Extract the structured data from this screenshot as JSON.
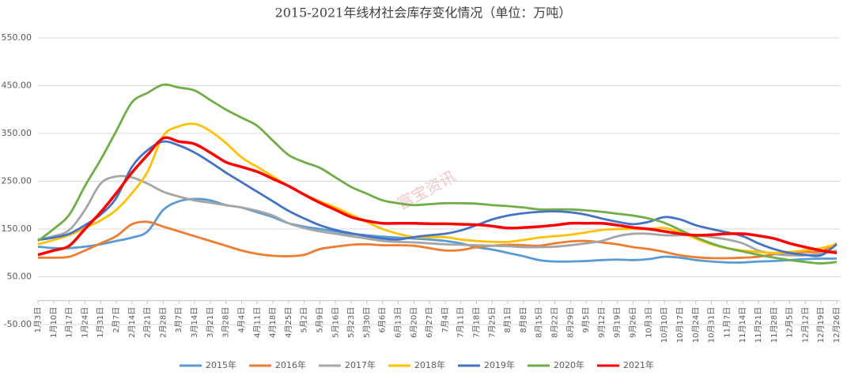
{
  "chart_data": {
    "type": "line",
    "title": "2015-2021年线材社会库存变化情况（单位：万吨）",
    "watermark": "富宝资讯",
    "categories": [
      "1月3日",
      "1月10日",
      "1月17日",
      "1月24日",
      "1月31日",
      "2月7日",
      "2月14日",
      "2月21日",
      "2月28日",
      "3月7日",
      "3月14日",
      "3月21日",
      "3月28日",
      "4月4日",
      "4月11日",
      "4月18日",
      "4月25日",
      "5月2日",
      "5月9日",
      "5月16日",
      "5月23日",
      "5月30日",
      "6月6日",
      "6月13日",
      "6月20日",
      "6月27日",
      "7月4日",
      "7月11日",
      "7月18日",
      "7月25日",
      "8月1日",
      "8月8日",
      "8月15日",
      "8月22日",
      "8月29日",
      "9月5日",
      "9月12日",
      "9月19日",
      "9月26日",
      "10月3日",
      "10月10日",
      "10月17日",
      "10月24日",
      "10月31日",
      "11月7日",
      "11月14日",
      "11月21日",
      "11月28日",
      "12月5日",
      "12月12日",
      "12月19日",
      "12月26日"
    ],
    "series": [
      {
        "name": "2015年",
        "color": "#5b9bd5",
        "values": [
          113,
          110,
          110,
          113,
          118,
          125,
          132,
          145,
          190,
          208,
          213,
          210,
          200,
          195,
          185,
          175,
          162,
          155,
          150,
          145,
          140,
          137,
          134,
          132,
          130,
          128,
          125,
          120,
          112,
          107,
          100,
          93,
          85,
          82,
          82,
          83,
          85,
          86,
          85,
          87,
          92,
          90,
          85,
          82,
          80,
          80,
          82,
          83,
          85,
          87,
          88,
          88
        ]
      },
      {
        "name": "2016年",
        "color": "#ed7d31",
        "values": [
          90,
          90,
          92,
          105,
          120,
          135,
          160,
          165,
          155,
          145,
          135,
          125,
          115,
          105,
          98,
          94,
          93,
          96,
          108,
          113,
          117,
          118,
          116,
          116,
          115,
          110,
          105,
          106,
          112,
          115,
          117,
          116,
          115,
          120,
          124,
          125,
          122,
          118,
          112,
          108,
          102,
          95,
          91,
          89,
          89,
          90,
          92,
          97,
          100,
          102,
          103,
          120
        ]
      },
      {
        "name": "2017年",
        "color": "#a5a5a5",
        "values": [
          128,
          135,
          148,
          190,
          245,
          260,
          258,
          245,
          228,
          218,
          210,
          205,
          200,
          195,
          188,
          178,
          162,
          152,
          145,
          140,
          135,
          130,
          125,
          123,
          122,
          120,
          118,
          117,
          116,
          115,
          114,
          112,
          112,
          113,
          116,
          120,
          125,
          135,
          140,
          140,
          137,
          137,
          137,
          133,
          128,
          120,
          105,
          98,
          95,
          95,
          98,
          105
        ]
      },
      {
        "name": "2018年",
        "color": "#ffc000",
        "values": [
          118,
          127,
          137,
          152,
          168,
          190,
          225,
          270,
          345,
          365,
          370,
          355,
          330,
          300,
          280,
          260,
          240,
          222,
          208,
          195,
          180,
          165,
          150,
          140,
          133,
          133,
          133,
          128,
          125,
          123,
          123,
          127,
          132,
          135,
          138,
          143,
          148,
          150,
          150,
          150,
          152,
          143,
          130,
          118,
          110,
          105,
          102,
          100,
          102,
          105,
          110,
          118
        ]
      },
      {
        "name": "2019年",
        "color": "#4472c4",
        "values": [
          127,
          132,
          140,
          158,
          180,
          215,
          280,
          315,
          333,
          325,
          310,
          290,
          268,
          248,
          228,
          208,
          188,
          172,
          158,
          148,
          141,
          135,
          130,
          128,
          133,
          137,
          140,
          147,
          158,
          170,
          178,
          183,
          186,
          187,
          185,
          180,
          172,
          165,
          160,
          165,
          175,
          170,
          158,
          150,
          143,
          135,
          120,
          108,
          100,
          96,
          95,
          118
        ]
      },
      {
        "name": "2020年",
        "color": "#70ad47",
        "values": [
          125,
          150,
          180,
          240,
          295,
          355,
          415,
          435,
          452,
          446,
          440,
          420,
          400,
          383,
          366,
          335,
          305,
          290,
          278,
          258,
          238,
          224,
          210,
          204,
          200,
          202,
          204,
          204,
          203,
          200,
          198,
          195,
          191,
          191,
          191,
          189,
          186,
          182,
          178,
          172,
          163,
          148,
          133,
          120,
          110,
          103,
          96,
          90,
          85,
          81,
          78,
          81
        ]
      },
      {
        "name": "2021年",
        "color": "#ff0000",
        "values": [
          96,
          105,
          115,
          150,
          185,
          225,
          268,
          305,
          340,
          333,
          328,
          310,
          290,
          280,
          270,
          255,
          240,
          222,
          205,
          190,
          175,
          167,
          162,
          162,
          162,
          161,
          161,
          160,
          159,
          156,
          152,
          153,
          155,
          158,
          162,
          162,
          162,
          158,
          153,
          150,
          145,
          140,
          137,
          138,
          140,
          140,
          136,
          130,
          120,
          112,
          105,
          100
        ]
      }
    ],
    "ylim": [
      -50,
      550
    ],
    "yticks": [
      {
        "value": -50,
        "label": "-50.00"
      },
      {
        "value": 50,
        "label": "50.00"
      },
      {
        "value": 150,
        "label": "150.00"
      },
      {
        "value": 250,
        "label": "250.00"
      },
      {
        "value": 350,
        "label": "350.00"
      },
      {
        "value": 450,
        "label": "450.00"
      },
      {
        "value": 550,
        "label": "550.00"
      }
    ],
    "grid": true
  }
}
